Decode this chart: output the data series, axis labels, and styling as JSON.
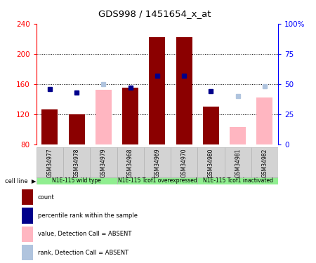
{
  "title": "GDS998 / 1451654_x_at",
  "samples": [
    "GSM34977",
    "GSM34978",
    "GSM34979",
    "GSM34968",
    "GSM34969",
    "GSM34970",
    "GSM34980",
    "GSM34981",
    "GSM34982"
  ],
  "count_values": [
    127,
    120,
    null,
    155,
    222,
    222,
    130,
    null,
    null
  ],
  "count_absent_values": [
    null,
    null,
    153,
    null,
    null,
    null,
    null,
    103,
    142
  ],
  "rank_values_pct": [
    46,
    43,
    null,
    47,
    57,
    57,
    44,
    null,
    null
  ],
  "rank_absent_values_pct": [
    null,
    null,
    50,
    null,
    null,
    null,
    null,
    40,
    48
  ],
  "ylim_left": [
    80,
    240
  ],
  "ylim_right": [
    0,
    100
  ],
  "yticks_left": [
    80,
    120,
    160,
    200,
    240
  ],
  "yticks_right": [
    0,
    25,
    50,
    75,
    100
  ],
  "ytick_labels_right": [
    "0",
    "25",
    "50",
    "75",
    "100%"
  ],
  "cell_line_groups": [
    {
      "label": "N1E-115 wild type",
      "start": 0,
      "end": 3,
      "color": "#90ee90"
    },
    {
      "label": "N1E-115 Tcof1\noverexpressed",
      "start": 3,
      "end": 6,
      "color": "#90ee90"
    },
    {
      "label": "N1E-115 Tcof1\ninactivated",
      "start": 6,
      "end": 9,
      "color": "#90ee90"
    }
  ],
  "bar_width": 0.6,
  "count_color": "#8b0000",
  "count_absent_color": "#ffb6c1",
  "rank_color": "#00008b",
  "rank_absent_color": "#b0c4de",
  "background_color": "#ffffff",
  "plot_bg_color": "#ffffff",
  "sample_bg_color": "#d3d3d3"
}
